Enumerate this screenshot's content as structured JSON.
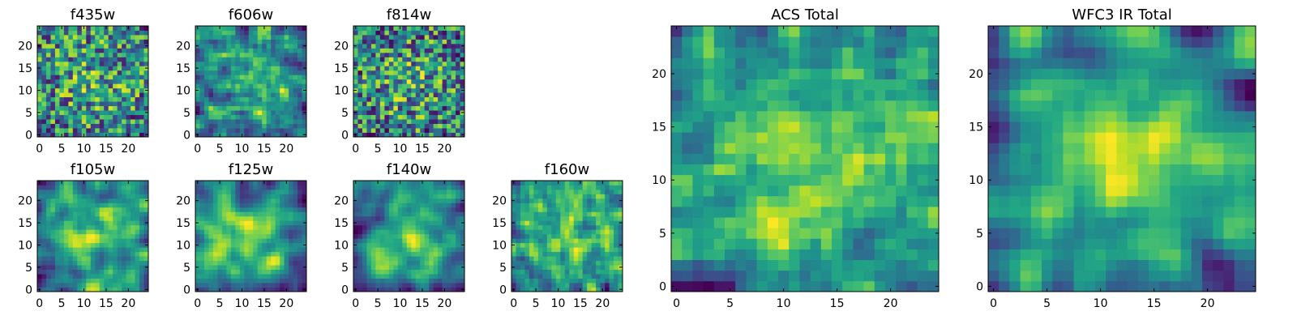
{
  "chart_data": [
    {
      "type": "heatmap",
      "title": "f435w",
      "seed": 11,
      "blur": 0,
      "grid": 25,
      "xticks": [
        0,
        5,
        10,
        15,
        20
      ],
      "yticks": [
        0,
        5,
        10,
        15,
        20
      ],
      "xlim": [
        -0.5,
        24.5
      ],
      "ylim": [
        -0.5,
        24.5
      ],
      "colormap": "viridis",
      "grid_lines": false
    },
    {
      "type": "heatmap",
      "title": "f606w",
      "seed": 23,
      "blur": 1,
      "grid": 25,
      "xticks": [
        0,
        5,
        10,
        15,
        20
      ],
      "yticks": [
        0,
        5,
        10,
        15,
        20
      ],
      "xlim": [
        -0.5,
        24.5
      ],
      "ylim": [
        -0.5,
        24.5
      ],
      "colormap": "viridis",
      "grid_lines": false
    },
    {
      "type": "heatmap",
      "title": "f814w",
      "seed": 37,
      "blur": 0,
      "grid": 25,
      "xticks": [
        0,
        5,
        10,
        15,
        20
      ],
      "yticks": [
        0,
        5,
        10,
        15,
        20
      ],
      "xlim": [
        -0.5,
        24.5
      ],
      "ylim": [
        -0.5,
        24.5
      ],
      "colormap": "viridis",
      "grid_lines": false
    },
    {
      "type": "heatmap",
      "title": "f105w",
      "seed": 41,
      "blur": 2,
      "grid": 25,
      "xticks": [
        0,
        5,
        10,
        15,
        20
      ],
      "yticks": [
        0,
        5,
        10,
        15,
        20
      ],
      "xlim": [
        -0.5,
        24.5
      ],
      "ylim": [
        -0.5,
        24.5
      ],
      "colormap": "viridis",
      "grid_lines": false
    },
    {
      "type": "heatmap",
      "title": "f125w",
      "seed": 53,
      "blur": 2,
      "grid": 25,
      "xticks": [
        0,
        5,
        10,
        15,
        20
      ],
      "yticks": [
        0,
        5,
        10,
        15,
        20
      ],
      "xlim": [
        -0.5,
        24.5
      ],
      "ylim": [
        -0.5,
        24.5
      ],
      "colormap": "viridis",
      "grid_lines": false
    },
    {
      "type": "heatmap",
      "title": "f140w",
      "seed": 67,
      "blur": 2,
      "grid": 25,
      "xticks": [
        0,
        5,
        10,
        15,
        20
      ],
      "yticks": [
        0,
        5,
        10,
        15,
        20
      ],
      "xlim": [
        -0.5,
        24.5
      ],
      "ylim": [
        -0.5,
        24.5
      ],
      "colormap": "viridis",
      "grid_lines": false
    },
    {
      "type": "heatmap",
      "title": "f160w",
      "seed": 79,
      "blur": 1,
      "grid": 25,
      "xticks": [
        0,
        5,
        10,
        15,
        20
      ],
      "yticks": [
        0,
        5,
        10,
        15,
        20
      ],
      "xlim": [
        -0.5,
        24.5
      ],
      "ylim": [
        -0.5,
        24.5
      ],
      "colormap": "viridis",
      "grid_lines": false
    },
    {
      "type": "heatmap",
      "title": "ACS Total",
      "seed": 97,
      "blur": 1,
      "grid": 25,
      "xticks": [
        0,
        5,
        10,
        15,
        20
      ],
      "yticks": [
        0,
        5,
        10,
        15,
        20
      ],
      "xlim": [
        -0.5,
        24.5
      ],
      "ylim": [
        -0.5,
        24.5
      ],
      "colormap": "viridis",
      "grid_lines": false
    },
    {
      "type": "heatmap",
      "title": "WFC3 IR Total",
      "seed": 113,
      "blur": 2,
      "grid": 25,
      "xticks": [
        0,
        5,
        10,
        15,
        20
      ],
      "yticks": [
        0,
        5,
        10,
        15,
        20
      ],
      "xlim": [
        -0.5,
        24.5
      ],
      "ylim": [
        -0.5,
        24.5
      ],
      "colormap": "viridis",
      "grid_lines": false
    }
  ]
}
